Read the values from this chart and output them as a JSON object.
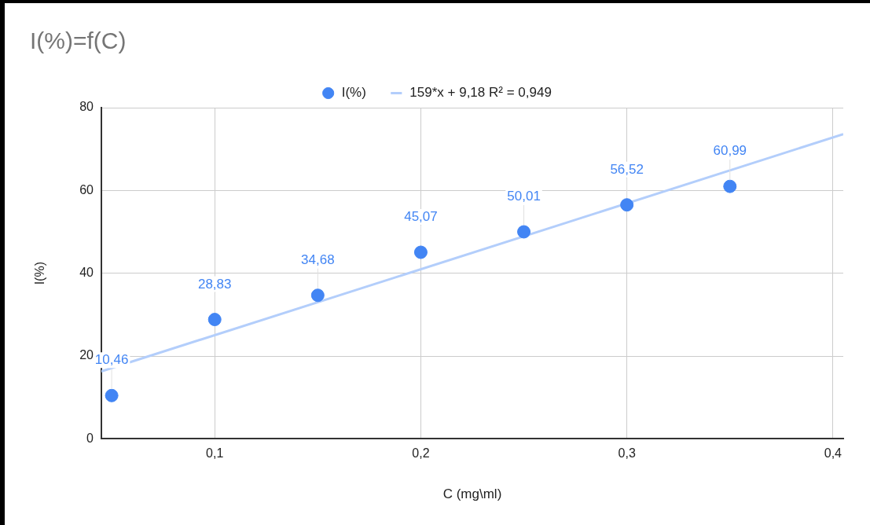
{
  "chart_data": {
    "type": "scatter",
    "title": "I(%)=f(C)",
    "xlabel": "C (mg\\ml)",
    "ylabel": "I(%)",
    "xlim": [
      0.045,
      0.405
    ],
    "xticks": [
      {
        "value": 0.1,
        "label": "0,1"
      },
      {
        "value": 0.2,
        "label": "0,2"
      },
      {
        "value": 0.3,
        "label": "0,3"
      },
      {
        "value": 0.4,
        "label": "0,4"
      }
    ],
    "ylim": [
      0,
      80
    ],
    "yticks": [
      0,
      20,
      40,
      60,
      80
    ],
    "grid": true,
    "legend": "top",
    "series": [
      {
        "name": "I(%)",
        "marker": "circle",
        "color": "#4285f4",
        "x": [
          0.05,
          0.1,
          0.15,
          0.2,
          0.25,
          0.3,
          0.35
        ],
        "values": [
          10.46,
          28.83,
          34.68,
          45.07,
          50.01,
          56.52,
          60.99
        ],
        "value_labels": [
          "10,46",
          "28,83",
          "34,68",
          "45,07",
          "50,01",
          "56,52",
          "60,99"
        ]
      },
      {
        "name": "159*x + 9,18 R² = 0,949",
        "type": "line",
        "color": "#b3cefb",
        "x": [
          0.045,
          0.405
        ],
        "values": [
          16.3,
          73.6
        ],
        "line_style": "solid"
      }
    ]
  }
}
